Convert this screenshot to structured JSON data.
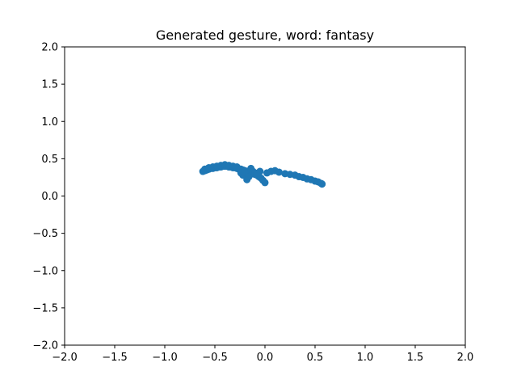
{
  "chart_data": {
    "type": "scatter",
    "title": "Generated gesture, word: fantasy",
    "xlabel": "",
    "ylabel": "",
    "xlim": [
      -2.0,
      2.0
    ],
    "ylim": [
      -2.0,
      2.0
    ],
    "xticks": [
      "−2.0",
      "−1.5",
      "−1.0",
      "−0.5",
      "0.0",
      "0.5",
      "1.0",
      "1.5",
      "2.0"
    ],
    "yticks": [
      "−2.0",
      "−1.5",
      "−1.0",
      "−0.5",
      "0.0",
      "0.5",
      "1.0",
      "1.5",
      "2.0"
    ],
    "grid": false,
    "marker_color": "#1f77b4",
    "series": [
      {
        "points": [
          [
            -0.62,
            0.33
          ],
          [
            -0.6,
            0.34
          ],
          [
            -0.58,
            0.35
          ],
          [
            -0.56,
            0.36
          ],
          [
            -0.54,
            0.37
          ],
          [
            -0.52,
            0.37
          ],
          [
            -0.5,
            0.38
          ],
          [
            -0.48,
            0.38
          ],
          [
            -0.46,
            0.39
          ],
          [
            -0.44,
            0.39
          ],
          [
            -0.42,
            0.4
          ],
          [
            -0.4,
            0.4
          ],
          [
            -0.38,
            0.4
          ],
          [
            -0.36,
            0.39
          ],
          [
            -0.34,
            0.39
          ],
          [
            -0.32,
            0.38
          ],
          [
            -0.3,
            0.38
          ],
          [
            -0.28,
            0.37
          ],
          [
            -0.26,
            0.36
          ],
          [
            -0.24,
            0.36
          ],
          [
            -0.22,
            0.35
          ],
          [
            -0.2,
            0.34
          ],
          [
            -0.18,
            0.33
          ],
          [
            -0.16,
            0.32
          ],
          [
            -0.14,
            0.31
          ],
          [
            -0.12,
            0.3
          ],
          [
            -0.1,
            0.29
          ],
          [
            -0.08,
            0.28
          ],
          [
            -0.06,
            0.26
          ],
          [
            -0.04,
            0.24
          ],
          [
            -0.02,
            0.21
          ],
          [
            0.0,
            0.18
          ],
          [
            -0.6,
            0.36
          ],
          [
            -0.56,
            0.38
          ],
          [
            -0.52,
            0.39
          ],
          [
            -0.48,
            0.4
          ],
          [
            -0.44,
            0.41
          ],
          [
            -0.4,
            0.42
          ],
          [
            -0.36,
            0.41
          ],
          [
            -0.32,
            0.4
          ],
          [
            -0.28,
            0.39
          ],
          [
            -0.24,
            0.31
          ],
          [
            -0.22,
            0.28
          ],
          [
            -0.2,
            0.32
          ],
          [
            -0.18,
            0.22
          ],
          [
            -0.16,
            0.26
          ],
          [
            -0.14,
            0.37
          ],
          [
            -0.12,
            0.33
          ],
          [
            -0.1,
            0.31
          ],
          [
            -0.08,
            0.3
          ],
          [
            -0.05,
            0.33
          ],
          [
            0.02,
            0.31
          ],
          [
            0.06,
            0.33
          ],
          [
            0.1,
            0.34
          ],
          [
            0.14,
            0.32
          ],
          [
            0.2,
            0.3
          ],
          [
            0.25,
            0.29
          ],
          [
            0.3,
            0.28
          ],
          [
            0.34,
            0.26
          ],
          [
            0.38,
            0.25
          ],
          [
            0.42,
            0.23
          ],
          [
            0.46,
            0.22
          ],
          [
            0.5,
            0.2
          ],
          [
            0.53,
            0.19
          ],
          [
            0.56,
            0.17
          ],
          [
            0.57,
            0.16
          ]
        ]
      }
    ]
  }
}
